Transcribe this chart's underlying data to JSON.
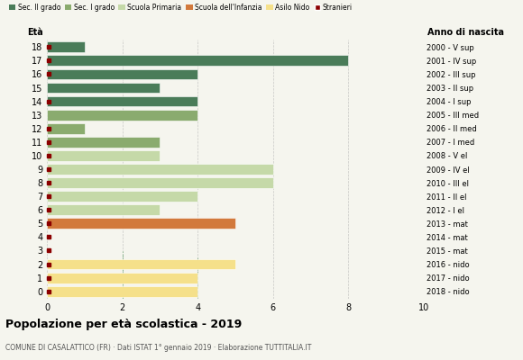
{
  "ages": [
    18,
    17,
    16,
    15,
    14,
    13,
    12,
    11,
    10,
    9,
    8,
    7,
    6,
    5,
    4,
    3,
    2,
    1,
    0
  ],
  "years": [
    "2000 - V sup",
    "2001 - IV sup",
    "2002 - III sup",
    "2003 - II sup",
    "2004 - I sup",
    "2005 - III med",
    "2006 - II med",
    "2007 - I med",
    "2008 - V el",
    "2009 - IV el",
    "2010 - III el",
    "2011 - II el",
    "2012 - I el",
    "2013 - mat",
    "2014 - mat",
    "2015 - mat",
    "2016 - nido",
    "2017 - nido",
    "2018 - nido"
  ],
  "bar_values": [
    1,
    8,
    4,
    3,
    4,
    4,
    1,
    3,
    3,
    6,
    6,
    4,
    3,
    5,
    0,
    0,
    5,
    4,
    4
  ],
  "bar_colors": [
    "#4a7c59",
    "#4a7c59",
    "#4a7c59",
    "#4a7c59",
    "#4a7c59",
    "#8aab6e",
    "#8aab6e",
    "#8aab6e",
    "#c5d9a8",
    "#c5d9a8",
    "#c5d9a8",
    "#c5d9a8",
    "#c5d9a8",
    "#d2793c",
    "#c5d9a8",
    "#c5d9a8",
    "#f5e08a",
    "#f5e08a",
    "#f5e08a"
  ],
  "stranieri_ages": [
    18,
    17,
    16,
    14,
    12,
    11,
    10,
    9,
    8,
    7,
    6,
    5,
    4,
    3,
    2,
    1,
    0
  ],
  "legend_labels": [
    "Sec. II grado",
    "Sec. I grado",
    "Scuola Primaria",
    "Scuola dell'Infanzia",
    "Asilo Nido",
    "Stranieri"
  ],
  "legend_colors": [
    "#4a7c59",
    "#8aab6e",
    "#c5d9a8",
    "#d2793c",
    "#f5e08a",
    "#8b0000"
  ],
  "title": "Popolazione per età scolastica - 2019",
  "subtitle": "COMUNE DI CASALATTICO (FR) · Dati ISTAT 1° gennaio 2019 · Elaborazione TUTTITALIA.IT",
  "xlabel_left": "Età",
  "xlabel_right": "Anno di nascita",
  "xlim": [
    0,
    10
  ],
  "xticks": [
    0,
    2,
    4,
    6,
    8,
    10
  ],
  "bg_color": "#f5f5ee",
  "bar_height": 0.78,
  "dashed_line_color": "#7aab80",
  "grid_color": "#aaaaaa"
}
